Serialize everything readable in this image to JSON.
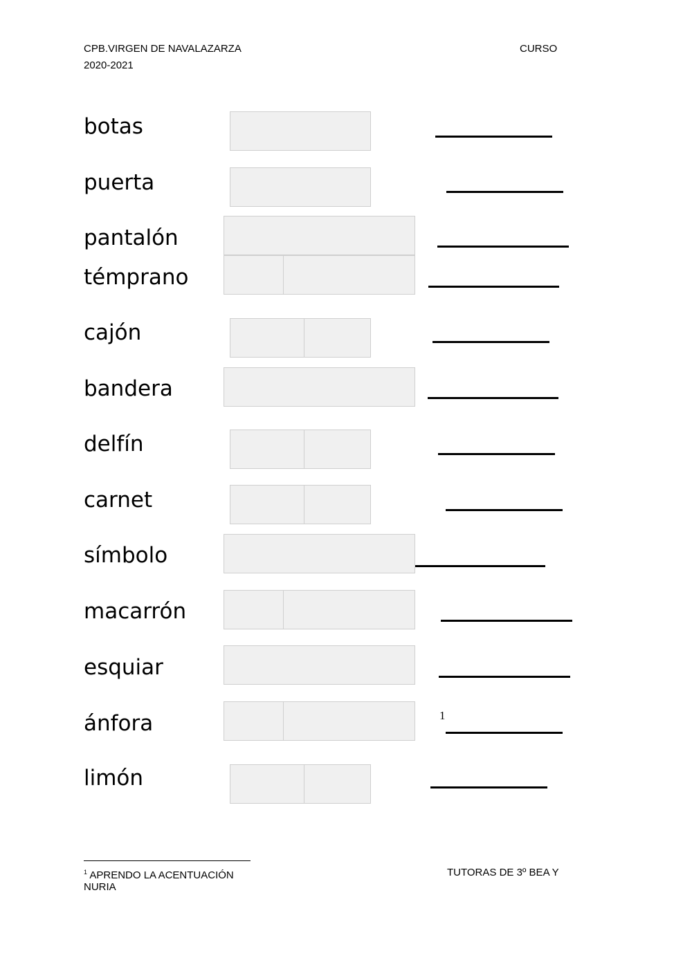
{
  "header": {
    "school": "CPB.VIRGEN DE NAVALAZARZA",
    "year": "2020-2021",
    "right": "CURSO"
  },
  "words": [
    "botas",
    "puerta",
    "pantalón",
    "témprano",
    "cajón",
    "bandera",
    "delfín",
    "carnet",
    "símbolo",
    "macarrón",
    "esquiar",
    "ánfora",
    "limón"
  ],
  "footnote_marker": "1",
  "footer": {
    "footnote_number": "1",
    "footnote_text": "APRENDO LA ACENTUACIÓN",
    "footnote_text_cont": "NURIA",
    "right": "TUTORAS DE 3º  BEA Y"
  }
}
